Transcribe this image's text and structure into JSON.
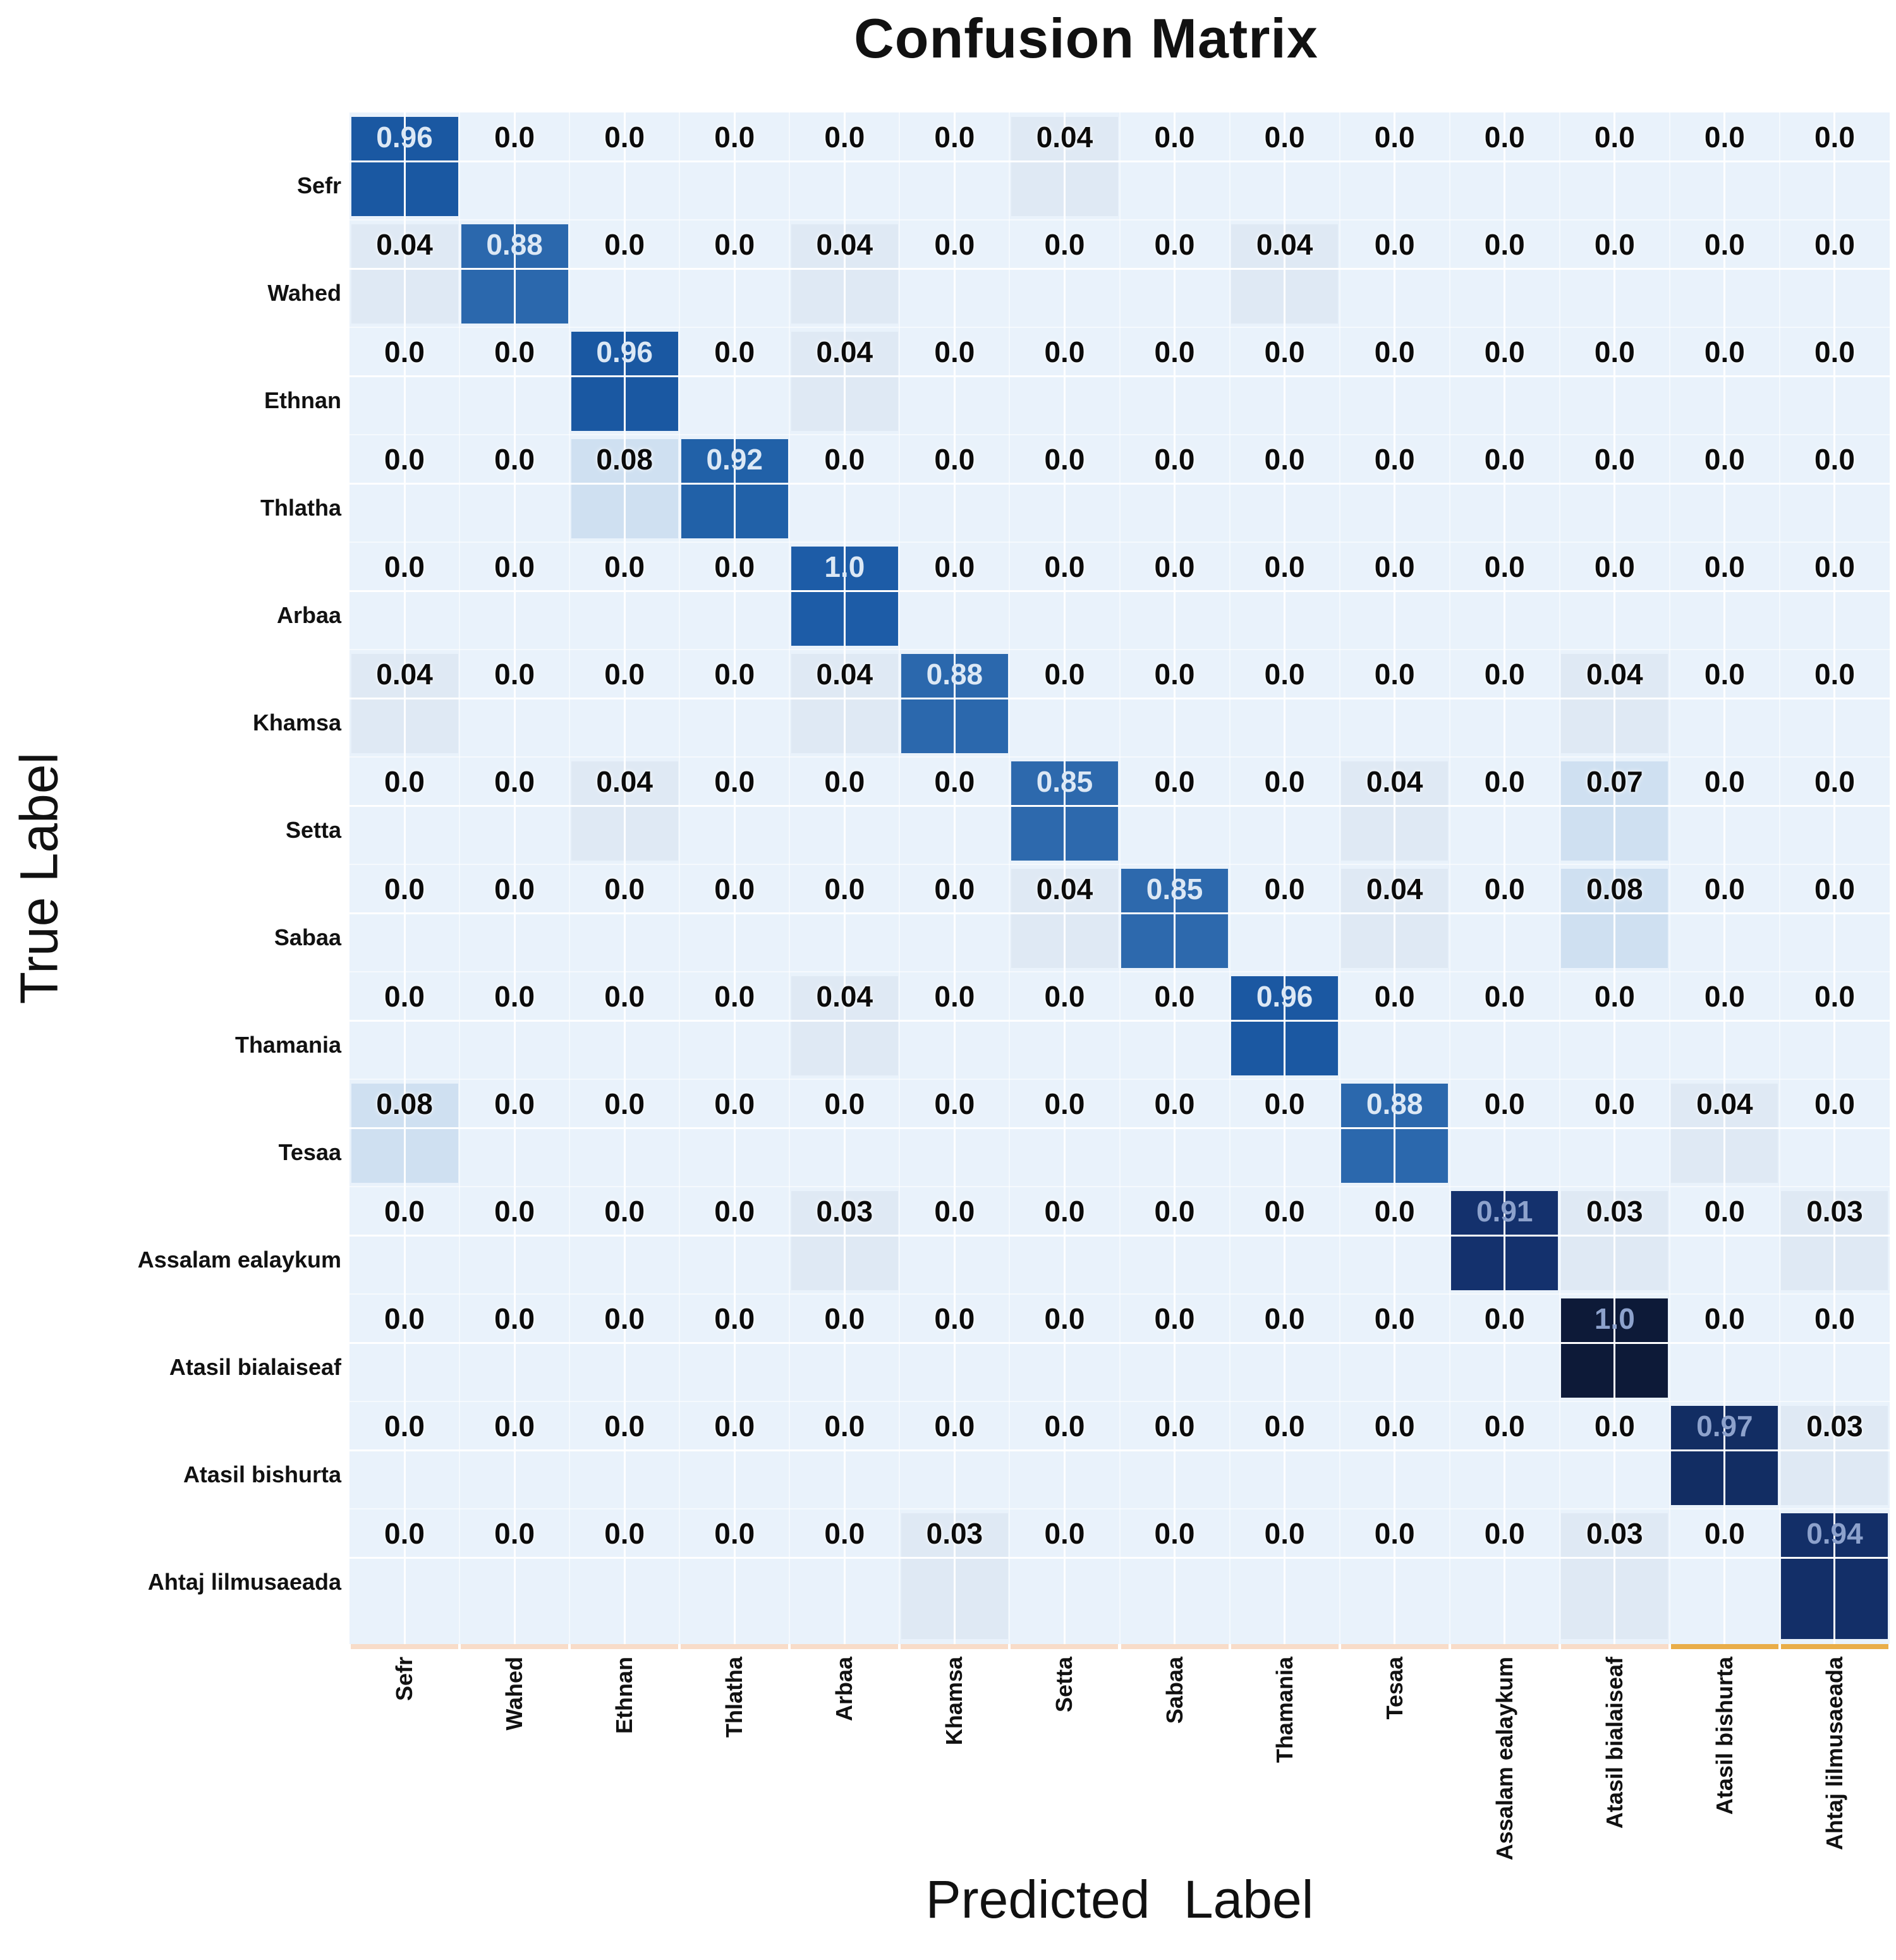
{
  "title": "Confusion Matrix",
  "axes": {
    "y_label": "True Label",
    "x_label": "Predicted Label"
  },
  "chart_data": {
    "type": "heatmap",
    "title": "Confusion Matrix",
    "xlabel": "Predicted Label",
    "ylabel": "True Label",
    "legend_position": "none",
    "grid": "white crosshair lines through cell centers",
    "labels": [
      "Sefr",
      "Wahed",
      "Ethnan",
      "Thlatha",
      "Arbaa",
      "Khamsa",
      "Setta",
      "Sabaa",
      "Thamania",
      "Tesaa",
      "Assalam ealaykum",
      "Atasil bialaiseaf",
      "Atasil bishurta",
      "Ahtaj lilmusaeada"
    ],
    "cells": [
      [
        "0.96",
        "0.0",
        "0.0",
        "0.0",
        "0.0",
        "0.0",
        "0.04",
        "0.0",
        "0.0",
        "0.0",
        "0.0",
        "0.0",
        "0.0",
        "0.0"
      ],
      [
        "0.04",
        "0.88",
        "0.0",
        "0.0",
        "0.04",
        "0.0",
        "0.0",
        "0.0",
        "0.04",
        "0.0",
        "0.0",
        "0.0",
        "0.0",
        "0.0"
      ],
      [
        "0.0",
        "0.0",
        "0.96",
        "0.0",
        "0.04",
        "0.0",
        "0.0",
        "0.0",
        "0.0",
        "0.0",
        "0.0",
        "0.0",
        "0.0",
        "0.0"
      ],
      [
        "0.0",
        "0.0",
        "0.08",
        "0.92",
        "0.0",
        "0.0",
        "0.0",
        "0.0",
        "0.0",
        "0.0",
        "0.0",
        "0.0",
        "0.0",
        "0.0"
      ],
      [
        "0.0",
        "0.0",
        "0.0",
        "0.0",
        "1.0",
        "0.0",
        "0.0",
        "0.0",
        "0.0",
        "0.0",
        "0.0",
        "0.0",
        "0.0",
        "0.0"
      ],
      [
        "0.04",
        "0.0",
        "0.0",
        "0.0",
        "0.04",
        "0.88",
        "0.0",
        "0.0",
        "0.0",
        "0.0",
        "0.0",
        "0.04",
        "0.0",
        "0.0"
      ],
      [
        "0.0",
        "0.0",
        "0.04",
        "0.0",
        "0.0",
        "0.0",
        "0.85",
        "0.0",
        "0.0",
        "0.04",
        "0.0",
        "0.07",
        "0.0",
        "0.0"
      ],
      [
        "0.0",
        "0.0",
        "0.0",
        "0.0",
        "0.0",
        "0.0",
        "0.04",
        "0.85",
        "0.0",
        "0.04",
        "0.0",
        "0.08",
        "0.0",
        "0.0"
      ],
      [
        "0.0",
        "0.0",
        "0.0",
        "0.0",
        "0.04",
        "0.0",
        "0.0",
        "0.0",
        "0.96",
        "0.0",
        "0.0",
        "0.0",
        "0.0",
        "0.0"
      ],
      [
        "0.08",
        "0.0",
        "0.0",
        "0.0",
        "0.0",
        "0.0",
        "0.0",
        "0.0",
        "0.0",
        "0.88",
        "0.0",
        "0.0",
        "0.04",
        "0.0"
      ],
      [
        "0.0",
        "0.0",
        "0.0",
        "0.0",
        "0.03",
        "0.0",
        "0.0",
        "0.0",
        "0.0",
        "0.0",
        "0.91",
        "0.03",
        "0.0",
        "0.03"
      ],
      [
        "0.0",
        "0.0",
        "0.0",
        "0.0",
        "0.0",
        "0.0",
        "0.0",
        "0.0",
        "0.0",
        "0.0",
        "0.0",
        "1.0",
        "0.0",
        "0.0"
      ],
      [
        "0.0",
        "0.0",
        "0.0",
        "0.0",
        "0.0",
        "0.0",
        "0.0",
        "0.0",
        "0.0",
        "0.0",
        "0.0",
        "0.0",
        "0.97",
        "0.03"
      ],
      [
        "0.0",
        "0.0",
        "0.0",
        "0.0",
        "0.0",
        "0.03",
        "0.0",
        "0.0",
        "0.0",
        "0.0",
        "0.0",
        "0.03",
        "0.0",
        "0.94"
      ]
    ],
    "colors": {
      "plot_background": "#e9f2fb",
      "gridline": "#ffffff",
      "cell_small": "#dfe9f4",
      "cell_medium": "#cfe0f1",
      "diagonal": [
        "#1a58a2",
        "#2b68ad",
        "#1a58a2",
        "#2161a8",
        "#1d5ca7",
        "#2b68ad",
        "#2d69ad",
        "#2d69ad",
        "#1b58a2",
        "#2b68ad",
        "#14316d",
        "#0d1a38",
        "#122d63",
        "#132f68"
      ],
      "number_dark": "#0b0b0b",
      "number_bright": "#dce8f5",
      "number_dim": "#8da2cc",
      "strip": [
        "#f8dcc9",
        "#f8dcc9",
        "#f8dcc9",
        "#f8dcc9",
        "#f8dcc9",
        "#f8dcc9",
        "#f8dcc9",
        "#f8dcc9",
        "#f8dcc9",
        "#f8dcc9",
        "#f8dcc9",
        "#f8dcc9",
        "#e9ad49",
        "#e9ad49"
      ]
    }
  }
}
